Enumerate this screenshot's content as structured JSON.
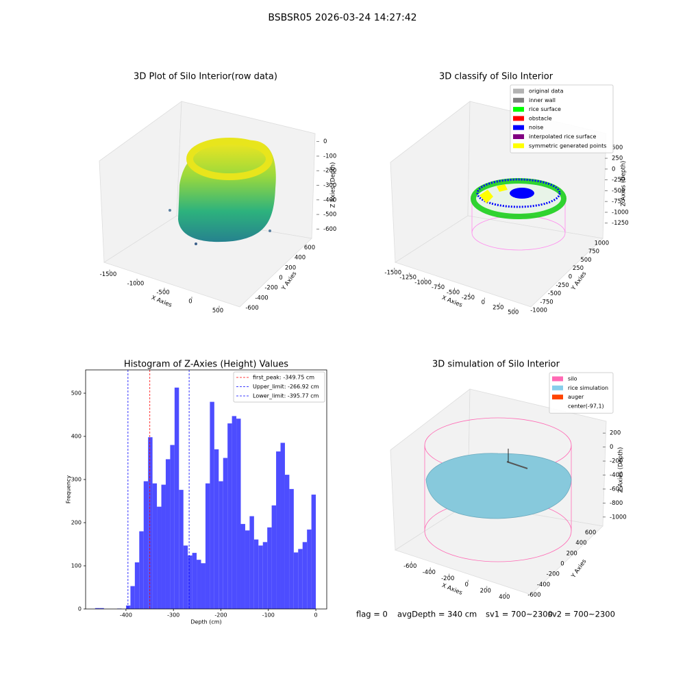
{
  "title": "BSBSR05 2026-03-24 14:27:42",
  "footer": [
    "flag = 0",
    "avgDepth = 340 cm",
    "sv1 = 700~2300",
    "sv2 = 700~2300"
  ],
  "chart_data": [
    {
      "type": "scatter3d",
      "title": "3D Plot of Silo Interior(row data)",
      "xlabel": "X Axies",
      "ylabel": "Y Axies",
      "zlabel": "Z Axies (Depth)",
      "xlim": [
        -1600,
        600
      ],
      "xticks": [
        -1500,
        -1000,
        -500,
        0,
        500
      ],
      "ylim": [
        -700,
        700
      ],
      "yticks": [
        -600,
        -400,
        -200,
        0,
        200,
        400,
        600
      ],
      "zlim": [
        -650,
        50
      ],
      "zticks": [
        0,
        -100,
        -200,
        -300,
        -400,
        -500,
        -600
      ]
    },
    {
      "type": "scatter3d",
      "title": "3D classify of Silo Interior",
      "xlabel": "X Axies",
      "ylabel": "Y Axies",
      "zlabel": "Z Axies (Depth)",
      "xlim": [
        -1600,
        600
      ],
      "xticks": [
        -1500,
        -1250,
        -1000,
        -750,
        -500,
        -250,
        0,
        250,
        500
      ],
      "ylim": [
        -1100,
        1100
      ],
      "yticks": [
        -1000,
        -750,
        -500,
        -250,
        0,
        250,
        500,
        750,
        1000
      ],
      "zlim": [
        -1350,
        600
      ],
      "zticks": [
        500,
        250,
        0,
        -250,
        -500,
        -750,
        -1000,
        -1250
      ],
      "legend": [
        {
          "name": "original data",
          "color": "#b3b3b3"
        },
        {
          "name": "inner wall",
          "color": "#808080"
        },
        {
          "name": "rice surface",
          "color": "#00ff00"
        },
        {
          "name": "obstacle",
          "color": "#ff0000"
        },
        {
          "name": "noise",
          "color": "#0000ff"
        },
        {
          "name": "interpolated rice surface",
          "color": "#800080"
        },
        {
          "name": "symmetric generated points",
          "color": "#ffff00"
        }
      ]
    },
    {
      "type": "histogram",
      "title": "Histogram of Z-Axies (Height) Values",
      "xlabel": "Depth (cm)",
      "ylabel": "Frequency",
      "color": "#4d4dff",
      "bins": [
        -465,
        -455.7,
        -446.4,
        -437.1,
        -427.8,
        -418.5,
        -409.2,
        -399.9,
        -390.6,
        -381.3,
        -372,
        -362.7,
        -353.4,
        -344.1,
        -334.8,
        -325.5,
        -316.2,
        -306.9,
        -297.6,
        -288.3,
        -279,
        -269.7,
        -260.4,
        -251.1,
        -241.8,
        -232.5,
        -223.2,
        -213.9,
        -204.6,
        -195.3,
        -186,
        -176.7,
        -167.4,
        -158.1,
        -148.8,
        -139.5,
        -130.2,
        -120.9,
        -111.6,
        -102.3,
        -93,
        -83.7,
        -74.4,
        -65.1,
        -55.8,
        -46.5,
        -37.2,
        -27.9,
        -18.6,
        -9.3,
        0
      ],
      "counts": [
        2,
        2,
        0,
        0,
        0,
        1,
        0,
        8,
        53,
        108,
        180,
        296,
        398,
        291,
        237,
        288,
        347,
        380,
        513,
        276,
        147,
        124,
        130,
        114,
        106,
        291,
        480,
        370,
        296,
        350,
        430,
        447,
        441,
        197,
        182,
        215,
        161,
        147,
        155,
        189,
        240,
        365,
        385,
        311,
        278,
        131,
        139,
        155,
        184,
        265
      ],
      "xlim": [
        -485,
        23
      ],
      "xticks": [
        -400,
        -300,
        -200,
        -100,
        0
      ],
      "ylim": [
        0,
        554
      ],
      "yticks": [
        0,
        100,
        200,
        300,
        400,
        500
      ],
      "vlines": [
        {
          "value": -349.75,
          "label": "first_peak: -349.75 cm",
          "color": "#ff0000"
        },
        {
          "value": -266.92,
          "label": "Upper_limit: -266.92 cm",
          "color": "#0000ff"
        },
        {
          "value": -395.77,
          "label": "Lower_limit: -395.77 cm",
          "color": "#0000ff"
        }
      ]
    },
    {
      "type": "surface3d",
      "title": "3D simulation of Silo Interior",
      "xlabel": "X Axies",
      "ylabel": "Y Axies",
      "zlabel": "Z Axies (Depth)",
      "xlim": [
        -700,
        500
      ],
      "xticks": [
        -600,
        -400,
        -200,
        0,
        200,
        400
      ],
      "ylim": [
        -700,
        700
      ],
      "yticks": [
        -600,
        -400,
        -200,
        0,
        200,
        400,
        600
      ],
      "zlim": [
        -1100,
        300
      ],
      "zticks": [
        200,
        0,
        -200,
        -400,
        -600,
        -800,
        -1000
      ],
      "legend": [
        {
          "name": "silo",
          "color": "#ff69b4"
        },
        {
          "name": "rice simulation",
          "color": "#87ceeb"
        },
        {
          "name": "auger",
          "color": "#ff4500"
        },
        {
          "name": "center(-97,1)",
          "color": "#ffffff"
        }
      ]
    }
  ]
}
